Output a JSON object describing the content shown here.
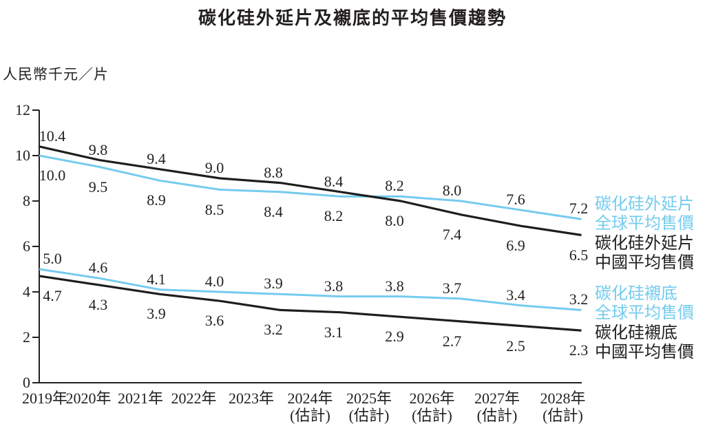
{
  "title": "碳化硅外延片及襯底的平均售價趨勢",
  "chart_data": {
    "type": "line",
    "title": "碳化硅外延片及襯底的平均售價趨勢",
    "ylabel": "人民幣千元／片",
    "ylim": [
      0,
      12
    ],
    "yticks": [
      0,
      2,
      4,
      6,
      8,
      10,
      12
    ],
    "x": [
      "2019年",
      "2020年",
      "2021年",
      "2022年",
      "2023年",
      "2024年",
      "2025年",
      "2026年",
      "2027年",
      "2028年"
    ],
    "x_notes": [
      "",
      "",
      "",
      "",
      "",
      "(估計)",
      "(估計)",
      "(估計)",
      "(估計)",
      "(估計)"
    ],
    "grid": false,
    "legend_position": "right",
    "colors": {
      "global_blue": "#74CBEE",
      "china_black": "#1E1E1E",
      "axis": "#231F20",
      "value_text": "#231F20"
    },
    "series": [
      {
        "id": "epi-global",
        "name": "碳化硅外延片全球平均售價",
        "legend": [
          "碳化硅外延片",
          "全球平均售價"
        ],
        "color_key": "global_blue",
        "pair": 0,
        "values": [
          10.0,
          9.5,
          8.9,
          8.5,
          8.4,
          8.2,
          8.2,
          8.0,
          7.6,
          7.2
        ]
      },
      {
        "id": "epi-china",
        "name": "碳化硅外延片中國平均售價",
        "legend": [
          "碳化硅外延片",
          "中國平均售價"
        ],
        "color_key": "china_black",
        "pair": 0,
        "values": [
          10.4,
          9.8,
          9.4,
          9.0,
          8.8,
          8.4,
          8.0,
          7.4,
          6.9,
          6.5
        ]
      },
      {
        "id": "sub-global",
        "name": "碳化硅襯底全球平均售價",
        "legend": [
          "碳化硅襯底",
          "全球平均售價"
        ],
        "color_key": "global_blue",
        "pair": 1,
        "values": [
          5.0,
          4.6,
          4.1,
          4.0,
          3.9,
          3.8,
          3.8,
          3.7,
          3.4,
          3.2
        ]
      },
      {
        "id": "sub-china",
        "name": "碳化硅襯底中國平均售價",
        "legend": [
          "碳化硅襯底",
          "中國平均售價"
        ],
        "color_key": "china_black",
        "pair": 1,
        "values": [
          4.7,
          4.3,
          3.9,
          3.6,
          3.2,
          3.1,
          2.9,
          2.7,
          2.5,
          2.3
        ]
      }
    ]
  }
}
